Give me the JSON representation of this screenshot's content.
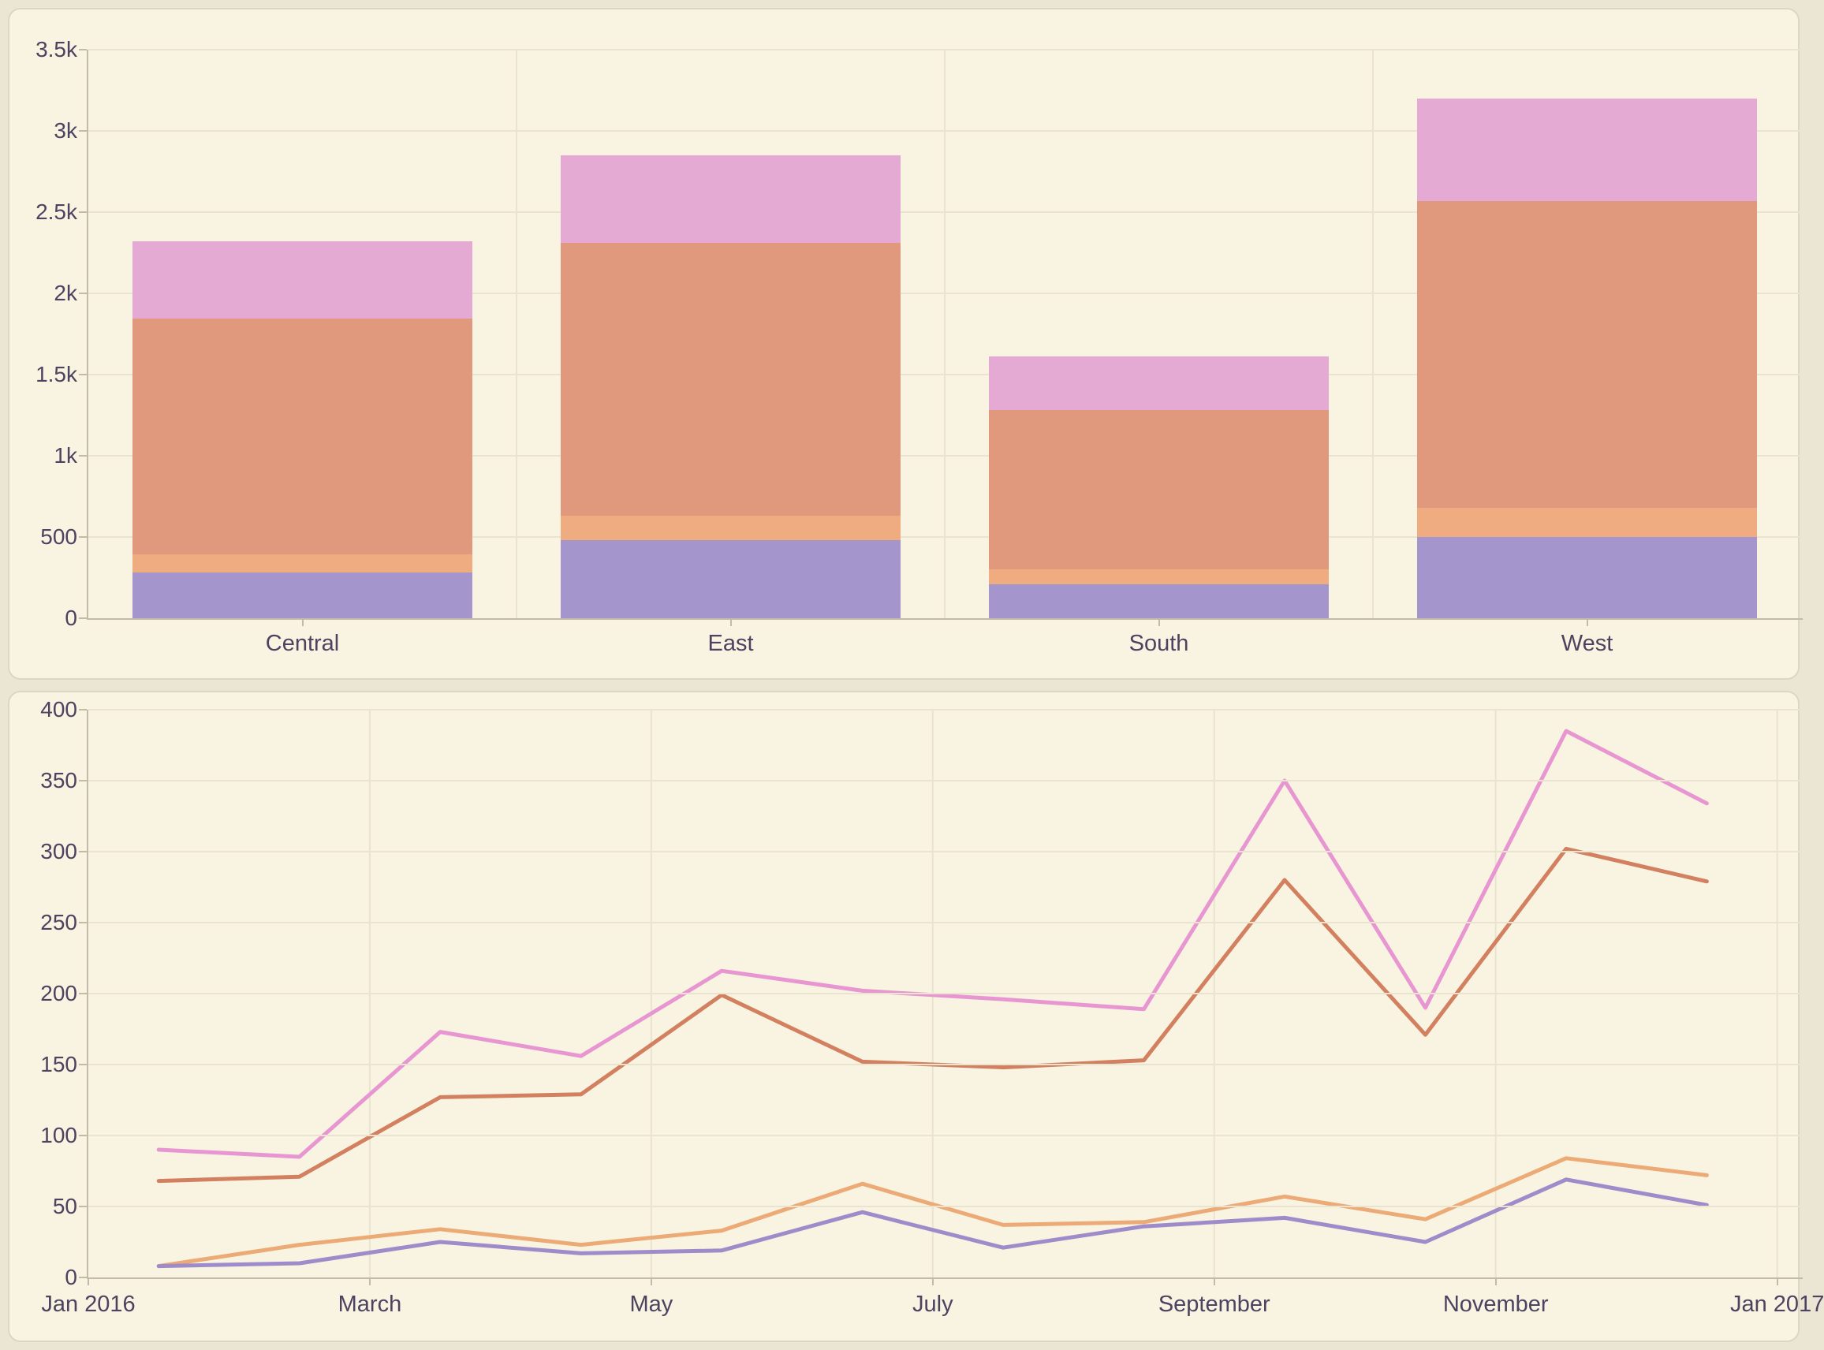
{
  "page": {
    "background": "#ebe5d3",
    "card_background": "#f9f3e1",
    "card_border": "#dcd6c4",
    "gridline_color": "#eae3cf",
    "axis_line_color": "#c2bba7",
    "axis_text_color": "#4c4360"
  },
  "colors": {
    "purple": "#a495cd",
    "light_orange": "#eeac80",
    "dark_orange": "#e0997c",
    "pink": "#e5aad3",
    "line_pink": "#e796d2",
    "line_dark_orange": "#d2805f",
    "line_light_orange": "#ecaa76",
    "line_purple": "#9e8cca"
  },
  "chart_data": [
    {
      "type": "bar",
      "stacked": true,
      "title": "",
      "xlabel": "",
      "ylabel": "",
      "grid": true,
      "legend": "none",
      "categories": [
        "Central",
        "East",
        "South",
        "West"
      ],
      "series": [
        {
          "name": "purple-segment",
          "color_key": "purple",
          "values": [
            280,
            480,
            210,
            500
          ]
        },
        {
          "name": "light-orange-segment",
          "color_key": "light_orange",
          "values": [
            115,
            150,
            90,
            180
          ]
        },
        {
          "name": "dark-orange-segment",
          "color_key": "dark_orange",
          "values": [
            1450,
            1680,
            980,
            1890
          ]
        },
        {
          "name": "pink-segment",
          "color_key": "pink",
          "values": [
            475,
            540,
            330,
            630
          ]
        }
      ],
      "stack_totals": [
        2320,
        2850,
        1610,
        3200
      ],
      "ylim": [
        0,
        3500
      ],
      "y_ticks": [
        {
          "label": "3.5k",
          "v": 3500
        },
        {
          "label": "3k",
          "v": 3000
        },
        {
          "label": "2.5k",
          "v": 2500
        },
        {
          "label": "2k",
          "v": 2000
        },
        {
          "label": "1.5k",
          "v": 1500
        },
        {
          "label": "1k",
          "v": 1000
        },
        {
          "label": "500",
          "v": 500
        },
        {
          "label": "0",
          "v": 0
        }
      ]
    },
    {
      "type": "line",
      "title": "",
      "xlabel": "",
      "ylabel": "",
      "grid": true,
      "legend": "none",
      "months_plotted": 12,
      "x_axis_labels": [
        "Jan 2016",
        "March",
        "May",
        "July",
        "September",
        "November",
        "Jan 2017"
      ],
      "series": [
        {
          "name": "pink-line",
          "color_key": "line_pink",
          "values": [
            90,
            85,
            173,
            156,
            216,
            202,
            196,
            189,
            350,
            190,
            385,
            334
          ]
        },
        {
          "name": "dark-orange-line",
          "color_key": "line_dark_orange",
          "values": [
            68,
            71,
            127,
            129,
            199,
            152,
            148,
            153,
            280,
            171,
            302,
            279
          ]
        },
        {
          "name": "light-orange-line",
          "color_key": "line_light_orange",
          "values": [
            8,
            23,
            34,
            23,
            33,
            66,
            37,
            39,
            57,
            41,
            84,
            72
          ]
        },
        {
          "name": "purple-line",
          "color_key": "line_purple",
          "values": [
            8,
            10,
            25,
            17,
            19,
            46,
            21,
            36,
            42,
            25,
            69,
            51
          ]
        }
      ],
      "ylim": [
        0,
        400
      ],
      "y_ticks": [
        {
          "label": "400",
          "v": 400
        },
        {
          "label": "350",
          "v": 350
        },
        {
          "label": "300",
          "v": 300
        },
        {
          "label": "250",
          "v": 250
        },
        {
          "label": "200",
          "v": 200
        },
        {
          "label": "150",
          "v": 150
        },
        {
          "label": "100",
          "v": 100
        },
        {
          "label": "50",
          "v": 50
        },
        {
          "label": "0",
          "v": 0
        }
      ]
    }
  ]
}
